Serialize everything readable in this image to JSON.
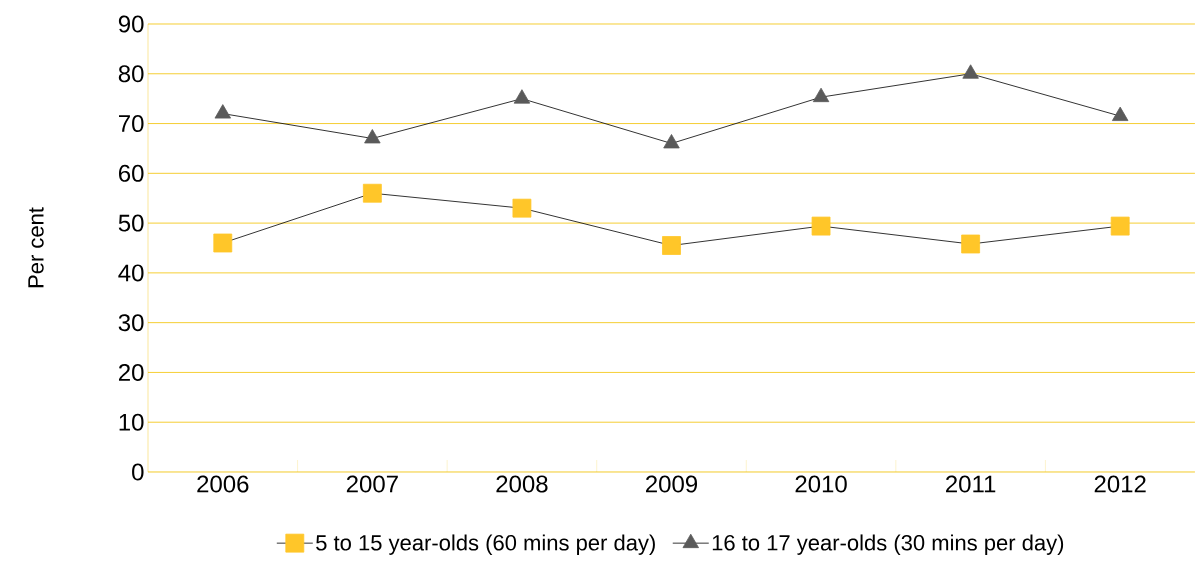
{
  "chart_data": {
    "type": "line",
    "ylabel": "Per cent",
    "categories": [
      "2006",
      "2007",
      "2008",
      "2009",
      "2010",
      "2011",
      "2012"
    ],
    "series": [
      {
        "name": "5 to 15 year-olds (60 mins per day)",
        "color": "#ffc629",
        "marker": "square",
        "values": [
          46,
          56,
          53,
          45.5,
          49.4,
          45.8,
          49.4
        ]
      },
      {
        "name": "16 to 17 year-olds (30 mins per day)",
        "color": "#5a5a5a",
        "marker": "triangle",
        "values": [
          72,
          67,
          75,
          66,
          75.3,
          80,
          71.5
        ]
      }
    ],
    "ylim": [
      0,
      90
    ],
    "yticks": [
      0,
      10,
      20,
      30,
      40,
      50,
      60,
      70,
      80,
      90
    ],
    "grid": "y",
    "legend": "bottom",
    "line_style": "solid"
  }
}
